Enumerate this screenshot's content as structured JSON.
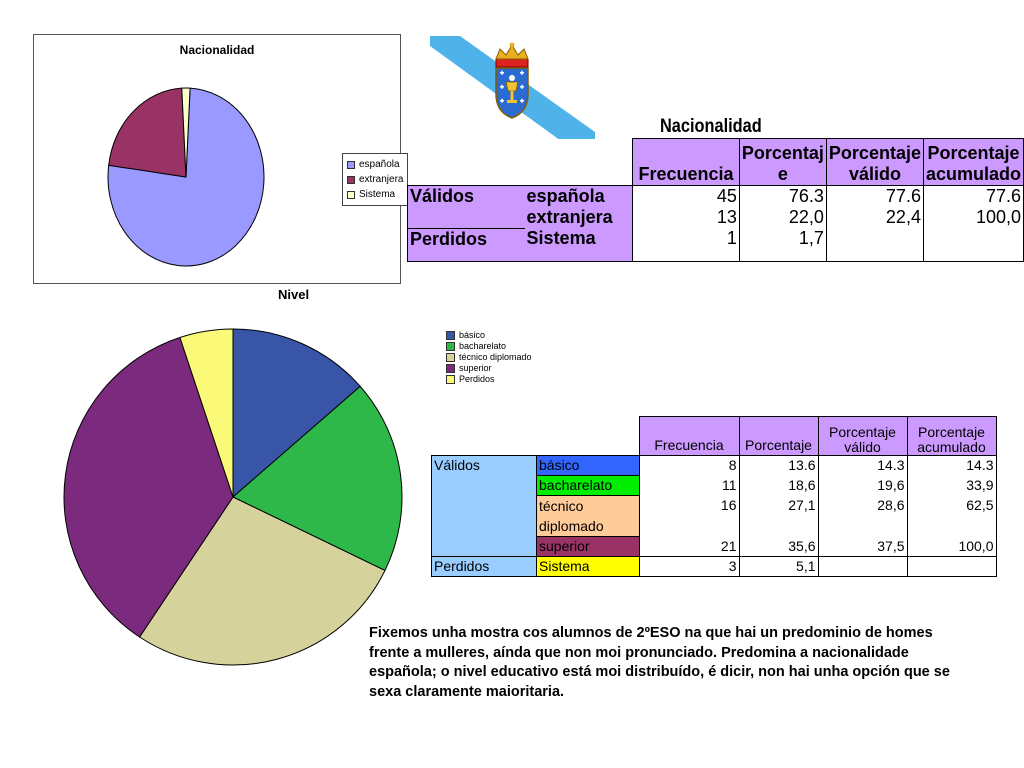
{
  "chart_data": [
    {
      "type": "pie",
      "title": "Nacionalidad",
      "categories": [
        "española",
        "extranjera",
        "Sistema"
      ],
      "values": [
        45,
        13,
        1
      ],
      "colors": [
        "#9999ff",
        "#993366",
        "#ffffcc"
      ],
      "legend": "right"
    },
    {
      "type": "pie",
      "title": "Nivel",
      "categories": [
        "básico",
        "bacharelato",
        "técnico diplomado",
        "superior",
        "Perdidos"
      ],
      "values": [
        8,
        11,
        16,
        21,
        3
      ],
      "colors": [
        "#3955a8",
        "#2eb84a",
        "#d6d29b",
        "#7b2a7d",
        "#fafa78"
      ],
      "legend": "top-right"
    }
  ],
  "table_nacionalidad": {
    "title": "Nacionalidad",
    "headers": [
      "Frecuencia",
      "Porcentaj e",
      "Porcentaje válido",
      "Porcentaje acumulado"
    ],
    "group_validos": "Válidos",
    "group_perdidos": "Perdidos",
    "rows": [
      {
        "label": "española",
        "freq": "45",
        "pct": "76.3",
        "valid": "77.6",
        "cum": "77.6"
      },
      {
        "label": "extranjera",
        "freq": "13",
        "pct": "22,0",
        "valid": "22,4",
        "cum": "100,0"
      },
      {
        "label": "Sistema",
        "freq": "1",
        "pct": "1,7",
        "valid": "",
        "cum": ""
      }
    ]
  },
  "table_nivel": {
    "headers": [
      "Frecuencia",
      "Porcentaje",
      "Porcentaje válido",
      "Porcentaje acumulado"
    ],
    "group_validos": "Válidos",
    "group_perdidos": "Perdidos",
    "rows": [
      {
        "label": "básico",
        "freq": "8",
        "pct": "13.6",
        "valid": "14.3",
        "cum": "14.3",
        "color": "#3366ff"
      },
      {
        "label": "bacharelato",
        "freq": "11",
        "pct": "18,6",
        "valid": "19,6",
        "cum": "33,9",
        "color": "#00ee00"
      },
      {
        "label": "técnico diplomado",
        "freq": "16",
        "pct": "27,1",
        "valid": "28,6",
        "cum": "62,5",
        "color": "#ffcc99"
      },
      {
        "label": "superior",
        "freq": "21",
        "pct": "35,6",
        "valid": "37,5",
        "cum": "100,0",
        "color": "#993366"
      },
      {
        "label": "Sistema",
        "freq": "3",
        "pct": "5,1",
        "valid": "",
        "cum": "",
        "color": "#ffff00"
      }
    ]
  },
  "conclusion": "Fixemos unha mostra cos alumnos de 2ºESO na que hai un predominio de homes frente a mulleres, aínda que non moi pronunciado. Predomina a nacionalidade española; o nivel educativo está moi distribuído, é dicir, non hai unha opción que se sexa claramente maioritaria."
}
